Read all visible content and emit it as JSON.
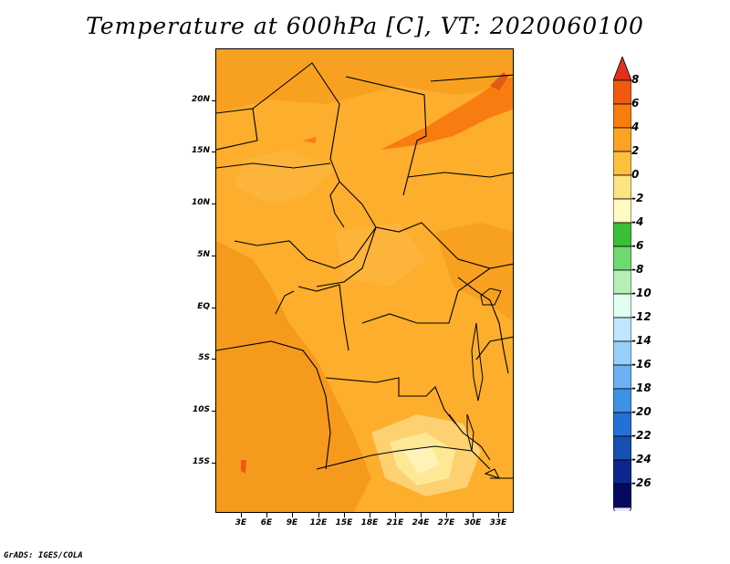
{
  "title": "Temperature at 600hPa [C], VT: 2020060100",
  "credit": "GrADS: IGES/COLA",
  "lat_labels": [
    "20N",
    "15N",
    "10N",
    "5N",
    "EQ",
    "5S",
    "10S",
    "15S"
  ],
  "lon_labels": [
    "3E",
    "6E",
    "9E",
    "12E",
    "15E",
    "18E",
    "21E",
    "24E",
    "27E",
    "30E",
    "33E"
  ],
  "colorbar": {
    "labels": [
      "8",
      "6",
      "4",
      "2",
      "0",
      "-2",
      "-4",
      "-6",
      "-8",
      "-10",
      "-12",
      "-14",
      "-16",
      "-18",
      "-20",
      "-22",
      "-24",
      "-26"
    ],
    "colors": [
      "#e0301e",
      "#f05a10",
      "#f77d10",
      "#fca225",
      "#fdbf3e",
      "#fde483",
      "#fffac0",
      "#3bbf3b",
      "#6fda6f",
      "#b5efb5",
      "#e1fff0",
      "#bfe6ff",
      "#98cff8",
      "#6db1f2",
      "#3e92e6",
      "#2370d6",
      "#1650b0",
      "#0c2890",
      "#040a60"
    ],
    "over_color": "#e0301e",
    "under_color": "#e6e6ff"
  }
}
